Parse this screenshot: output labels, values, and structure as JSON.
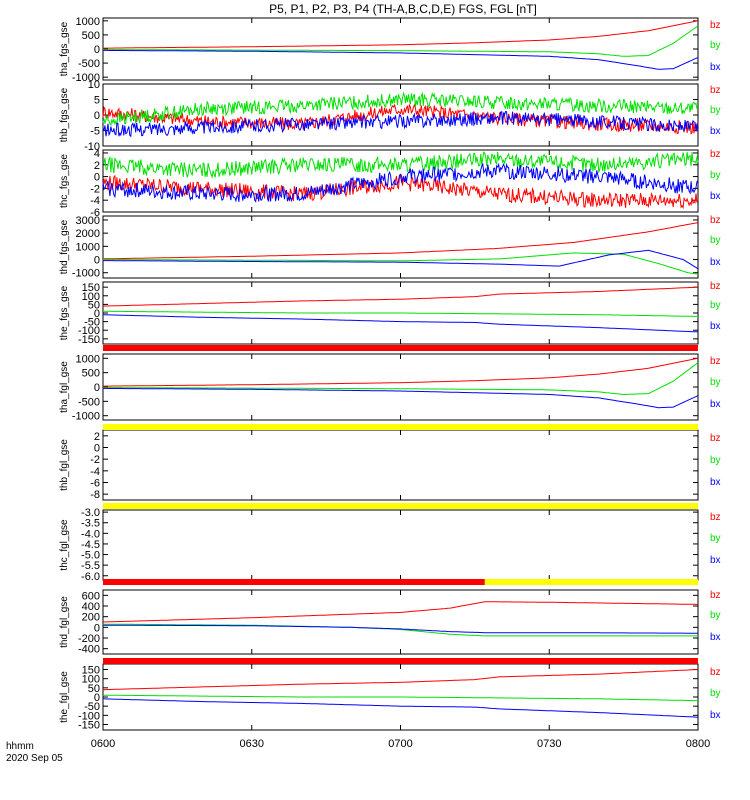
{
  "title": "P5, P1, P2, P3, P4 (TH-A,B,C,D,E) FGS, FGL [nT]",
  "footer": {
    "hhmm": "hhmm",
    "date": "2020 Sep 05"
  },
  "xaxis": {
    "range": [
      0,
      120
    ],
    "ticks": [
      0,
      30,
      60,
      90,
      120
    ],
    "labels": [
      "0600",
      "0630",
      "0700",
      "0730",
      "0800"
    ]
  },
  "colors": {
    "bz": "#ff0000",
    "by": "#00e000",
    "bx": "#0000ff",
    "bar_red": "#ff0000",
    "bar_yellow": "#ffff00"
  },
  "chart_data": [
    {
      "type": "line",
      "ylabel": "tha_fgs_gse",
      "ylim": [
        -1100,
        1100
      ],
      "yticks": [
        1000,
        500,
        0,
        -500,
        -1000
      ],
      "yticklabels": [
        "1000",
        "500",
        "0",
        "-500",
        "-1000"
      ],
      "legend": [
        "bz",
        "by",
        "bx"
      ],
      "series": [
        {
          "name": "bz",
          "x": [
            0,
            30,
            60,
            75,
            90,
            100,
            110,
            120
          ],
          "values": [
            30,
            80,
            150,
            220,
            320,
            450,
            650,
            1000
          ]
        },
        {
          "name": "by",
          "x": [
            0,
            30,
            60,
            90,
            100,
            105,
            110,
            115,
            120
          ],
          "values": [
            -20,
            -40,
            -60,
            -100,
            -170,
            -260,
            -230,
            200,
            820
          ]
        },
        {
          "name": "bx",
          "x": [
            0,
            30,
            60,
            90,
            100,
            108,
            112,
            115,
            120
          ],
          "values": [
            -50,
            -80,
            -140,
            -260,
            -380,
            -600,
            -720,
            -700,
            -300
          ]
        }
      ]
    },
    {
      "type": "line",
      "ylabel": "thb_fgs_gse",
      "ylim": [
        -10,
        10
      ],
      "yticks": [
        10,
        5,
        0,
        -5,
        -10
      ],
      "yticklabels": [
        "10",
        "5",
        "0",
        "-5",
        "-10"
      ],
      "legend": [
        "bz",
        "by",
        "bx"
      ],
      "series": [
        {
          "name": "bz",
          "x": [
            0,
            20,
            40,
            60,
            80,
            100,
            120
          ],
          "values": [
            1,
            -2,
            -3,
            2,
            -1,
            -3,
            -4
          ]
        },
        {
          "name": "by",
          "x": [
            0,
            20,
            40,
            60,
            80,
            100,
            120
          ],
          "values": [
            -2,
            2,
            3,
            5,
            4,
            3,
            2
          ]
        },
        {
          "name": "bx",
          "x": [
            0,
            20,
            40,
            60,
            80,
            100,
            120
          ],
          "values": [
            -5,
            -4,
            -3,
            -2,
            -1,
            -2,
            -4
          ]
        }
      ]
    },
    {
      "type": "line",
      "ylabel": "thc_fgs_gse",
      "ylim": [
        -6,
        4.5
      ],
      "yticks": [
        4,
        2,
        0,
        -2,
        -4,
        -6
      ],
      "yticklabels": [
        "4",
        "2",
        "0",
        "-2",
        "-4",
        "-6"
      ],
      "legend": [
        "bz",
        "by",
        "bx"
      ],
      "series": [
        {
          "name": "bz",
          "x": [
            0,
            20,
            40,
            60,
            80,
            100,
            120
          ],
          "values": [
            -1,
            -2,
            -3,
            -1,
            -3,
            -4,
            -4
          ]
        },
        {
          "name": "by",
          "x": [
            0,
            20,
            40,
            60,
            80,
            100,
            120
          ],
          "values": [
            2,
            1,
            2,
            2,
            3,
            2,
            3
          ]
        },
        {
          "name": "bx",
          "x": [
            0,
            20,
            40,
            60,
            80,
            100,
            120
          ],
          "values": [
            -2,
            -3,
            -3,
            0,
            1,
            0,
            -2
          ]
        }
      ]
    },
    {
      "type": "line",
      "ylabel": "thd_fgs_gse",
      "ylim": [
        -1400,
        3300
      ],
      "yticks": [
        3000,
        2000,
        1000,
        0,
        -1000
      ],
      "yticklabels": [
        "3000",
        "2000",
        "1000",
        "0",
        "-1000"
      ],
      "legend": [
        "bz",
        "by",
        "bx"
      ],
      "series": [
        {
          "name": "bz",
          "x": [
            0,
            30,
            60,
            80,
            95,
            110,
            120
          ],
          "values": [
            50,
            250,
            500,
            850,
            1300,
            2100,
            2800
          ]
        },
        {
          "name": "by",
          "x": [
            0,
            30,
            60,
            80,
            95,
            105,
            112,
            118,
            120
          ],
          "values": [
            0,
            -50,
            -100,
            50,
            500,
            400,
            -300,
            -1000,
            -1100
          ]
        },
        {
          "name": "bx",
          "x": [
            0,
            30,
            60,
            80,
            92,
            102,
            110,
            117,
            120
          ],
          "values": [
            -80,
            -150,
            -200,
            -350,
            -500,
            350,
            700,
            0,
            -700
          ]
        }
      ]
    },
    {
      "type": "line",
      "ylabel": "the_fgs_gse",
      "ylim": [
        -180,
        180
      ],
      "yticks": [
        150,
        100,
        50,
        0,
        -50,
        -100,
        -150
      ],
      "yticklabels": [
        "150",
        "100",
        "50",
        "0",
        "-50",
        "-100",
        "-150"
      ],
      "legend": [
        "bz",
        "by",
        "bx"
      ],
      "series": [
        {
          "name": "bz",
          "x": [
            0,
            20,
            40,
            60,
            75,
            80,
            100,
            120
          ],
          "values": [
            40,
            55,
            70,
            80,
            95,
            110,
            125,
            150
          ]
        },
        {
          "name": "by",
          "x": [
            0,
            20,
            40,
            60,
            80,
            100,
            120
          ],
          "values": [
            10,
            5,
            0,
            0,
            -5,
            -10,
            -20
          ]
        },
        {
          "name": "bx",
          "x": [
            0,
            20,
            40,
            60,
            75,
            80,
            100,
            120
          ],
          "values": [
            -10,
            -25,
            -35,
            -50,
            -55,
            -65,
            -85,
            -110
          ]
        }
      ]
    },
    {
      "type": "line",
      "ylabel": "tha_fgl_gse",
      "ylim": [
        -1150,
        1150
      ],
      "yticks": [
        1000,
        500,
        0,
        -500,
        -1000
      ],
      "yticklabels": [
        "1000",
        "500",
        "0",
        "-500",
        "-1000"
      ],
      "legend": [
        "bz",
        "by",
        "bx"
      ],
      "status_bar": [
        "red"
      ],
      "series": [
        {
          "name": "bz",
          "x": [
            0,
            30,
            60,
            75,
            90,
            100,
            110,
            120
          ],
          "values": [
            30,
            80,
            150,
            220,
            320,
            450,
            650,
            1000
          ]
        },
        {
          "name": "by",
          "x": [
            0,
            30,
            60,
            90,
            100,
            105,
            110,
            115,
            120
          ],
          "values": [
            -20,
            -40,
            -60,
            -100,
            -170,
            -260,
            -230,
            200,
            850
          ]
        },
        {
          "name": "bx",
          "x": [
            0,
            30,
            60,
            90,
            100,
            108,
            112,
            115,
            120
          ],
          "values": [
            -50,
            -80,
            -140,
            -260,
            -380,
            -600,
            -720,
            -700,
            -300
          ]
        }
      ]
    },
    {
      "type": "line",
      "ylabel": "thb_fgl_gse",
      "ylim": [
        -9,
        3
      ],
      "yticks": [
        2,
        0,
        -2,
        -4,
        -6,
        -8
      ],
      "yticklabels": [
        "2",
        "0",
        "-2",
        "-4",
        "-6",
        "-8"
      ],
      "legend": [
        "bz",
        "by",
        "bx"
      ],
      "status_bar": [
        "yellow"
      ],
      "series": []
    },
    {
      "type": "line",
      "ylabel": "thc_fgl_gse",
      "ylim": [
        -6.2,
        -2.9
      ],
      "yticks": [
        -3.0,
        -3.5,
        -4.0,
        -4.5,
        -5.0,
        -5.5,
        -6.0
      ],
      "yticklabels": [
        "-3.0",
        "-3.5",
        "-4.0",
        "-4.5",
        "-5.0",
        "-5.5",
        "-6.0"
      ],
      "legend": [
        "bz",
        "by",
        "bx"
      ],
      "status_bar": [
        "yellow"
      ],
      "series": []
    },
    {
      "type": "line",
      "ylabel": "thd_fgl_gse",
      "ylim": [
        -500,
        700
      ],
      "yticks": [
        600,
        400,
        200,
        0,
        -200,
        -400
      ],
      "yticklabels": [
        "600",
        "400",
        "200",
        "0",
        "-200",
        "-400"
      ],
      "legend": [
        "bz",
        "by",
        "bx"
      ],
      "status_bar": [
        "red",
        "yellow"
      ],
      "series": [
        {
          "name": "bz",
          "x": [
            0,
            30,
            60,
            70,
            77,
            90,
            120
          ],
          "values": [
            100,
            180,
            280,
            360,
            480,
            470,
            430
          ]
        },
        {
          "name": "by",
          "x": [
            0,
            30,
            50,
            60,
            70,
            77,
            90,
            120
          ],
          "values": [
            60,
            40,
            0,
            -40,
            -130,
            -160,
            -160,
            -160
          ]
        },
        {
          "name": "bx",
          "x": [
            0,
            30,
            50,
            60,
            70,
            77,
            90,
            120
          ],
          "values": [
            40,
            30,
            0,
            -30,
            -80,
            -100,
            -100,
            -110
          ]
        }
      ]
    },
    {
      "type": "line",
      "ylabel": "the_fgl_gse",
      "ylim": [
        -180,
        180
      ],
      "yticks": [
        150,
        100,
        50,
        0,
        -50,
        -100,
        -150
      ],
      "yticklabels": [
        "150",
        "100",
        "50",
        "0",
        "-50",
        "-100",
        "-150"
      ],
      "legend": [
        "bz",
        "by",
        "bx"
      ],
      "status_bar": [
        "red"
      ],
      "series": [
        {
          "name": "bz",
          "x": [
            0,
            20,
            40,
            60,
            75,
            80,
            100,
            120
          ],
          "values": [
            40,
            55,
            70,
            80,
            95,
            110,
            125,
            150
          ]
        },
        {
          "name": "by",
          "x": [
            0,
            20,
            40,
            60,
            80,
            100,
            120
          ],
          "values": [
            10,
            5,
            0,
            0,
            -5,
            -10,
            -20
          ]
        },
        {
          "name": "bx",
          "x": [
            0,
            20,
            40,
            60,
            75,
            80,
            100,
            120
          ],
          "values": [
            -10,
            -25,
            -35,
            -50,
            -55,
            -65,
            -85,
            -110
          ]
        }
      ]
    }
  ]
}
